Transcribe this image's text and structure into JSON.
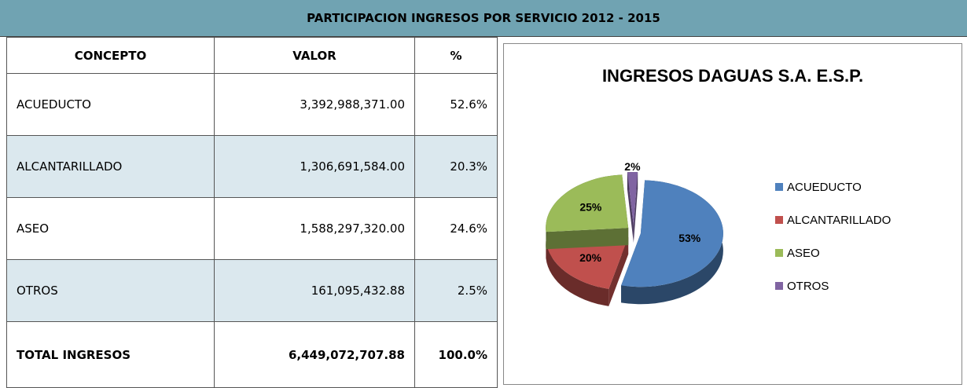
{
  "header": {
    "title": "PARTICIPACION INGRESOS POR SERVICIO 2012 - 2015"
  },
  "table": {
    "columns": [
      "CONCEPTO",
      "VALOR",
      "%"
    ],
    "rows": [
      [
        "ACUEDUCTO",
        "3,392,988,371.00",
        "52.6%"
      ],
      [
        "ALCANTARILLADO",
        "1,306,691,584.00",
        "20.3%"
      ],
      [
        "ASEO",
        "1,588,297,320.00",
        "24.6%"
      ],
      [
        "OTROS",
        "161,095,432.88",
        "2.5%"
      ]
    ],
    "total": [
      "TOTAL INGRESOS",
      "6,449,072,707.88",
      "100.0%"
    ]
  },
  "chart_data": {
    "type": "pie",
    "title": "INGRESOS DAGUAS S.A. E.S.P.",
    "categories": [
      "ACUEDUCTO",
      "ALCANTARILLADO",
      "ASEO",
      "OTROS"
    ],
    "values": [
      53,
      20,
      25,
      2
    ],
    "value_labels": [
      "53%",
      "20%",
      "25%",
      "2%"
    ],
    "colors": [
      "#4f81bd",
      "#c0504d",
      "#9bbb59",
      "#8064a2"
    ],
    "legend": "right"
  }
}
